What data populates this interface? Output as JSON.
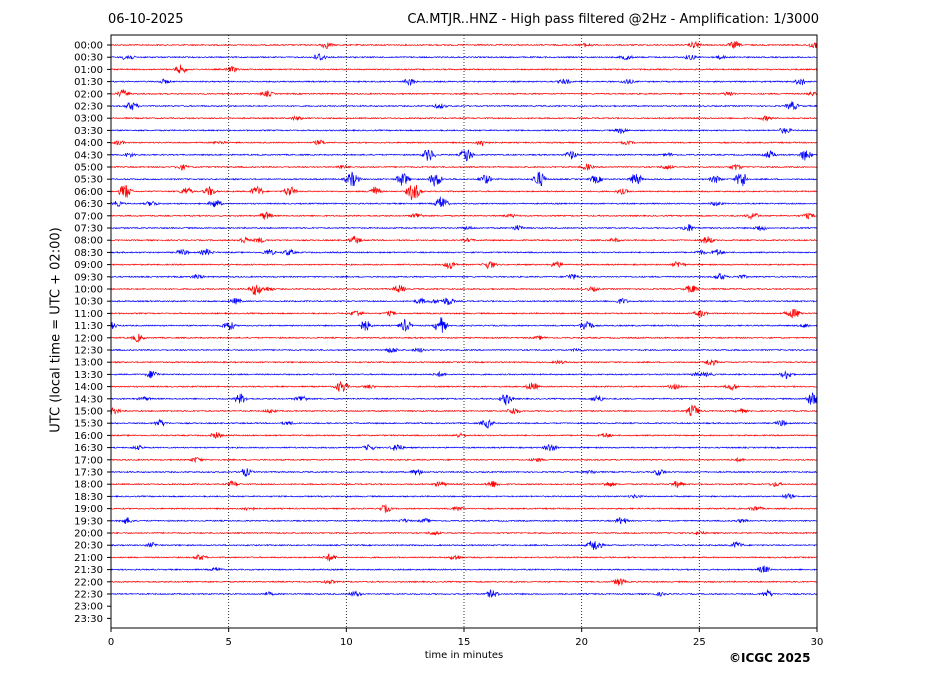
{
  "header": {
    "date": "06-10-2025",
    "title": "CA.MTJR..HNZ - High pass filtered @2Hz - Amplification: 1/3000"
  },
  "footer": {
    "copyright": "©ICGC 2025"
  },
  "colors": {
    "even_row_trace": "#ff0000",
    "odd_row_trace": "#0000ff",
    "grid": "#000000",
    "background": "#ffffff"
  },
  "chart_data": {
    "type": "line",
    "title": "CA.MTJR..HNZ - High pass filtered @2Hz - Amplification: 1/3000",
    "xlabel": "time in minutes",
    "ylabel": "UTC (local time = UTC + 02:00)",
    "xlim": [
      0,
      30
    ],
    "x_ticks": [
      "0",
      "5",
      "10",
      "15",
      "20",
      "25",
      "30"
    ],
    "y_tick_labels": [
      "00:00",
      "00:30",
      "01:00",
      "01:30",
      "02:00",
      "02:30",
      "03:00",
      "03:30",
      "04:00",
      "04:30",
      "05:00",
      "05:30",
      "06:00",
      "06:30",
      "07:00",
      "07:30",
      "08:00",
      "08:30",
      "09:00",
      "09:30",
      "10:00",
      "10:30",
      "11:00",
      "11:30",
      "12:00",
      "12:30",
      "13:00",
      "13:30",
      "14:00",
      "14:30",
      "15:00",
      "15:30",
      "16:00",
      "16:30",
      "17:00",
      "17:30",
      "18:00",
      "18:30",
      "19:00",
      "19:30",
      "20:00",
      "20:30",
      "21:00",
      "21:30",
      "22:00",
      "22:30",
      "23:00",
      "23:30"
    ],
    "vertical_gridlines_at_minutes": [
      5,
      10,
      15,
      20,
      25
    ],
    "grid_style": "dotted",
    "rows_with_visible_trace": 46,
    "row_activity": [
      {
        "row": "05:30",
        "notable_minutes": [
          10.2,
          12.4,
          13.8,
          15.9,
          18.2,
          20.6,
          22.3,
          26.8
        ]
      },
      {
        "row": "06:00",
        "notable_minutes": [
          0.6,
          3.2,
          4.2,
          6.2,
          7.6,
          11.2,
          12.8
        ]
      },
      {
        "row": "04:30",
        "notable_minutes": [
          13.5,
          15.1,
          29.5
        ]
      },
      {
        "row": "11:30",
        "notable_minutes": [
          5.0,
          10.8,
          12.5,
          14.0,
          20.2
        ]
      },
      {
        "row": "14:30",
        "notable_minutes": [
          5.5,
          16.8,
          29.8
        ]
      }
    ]
  }
}
